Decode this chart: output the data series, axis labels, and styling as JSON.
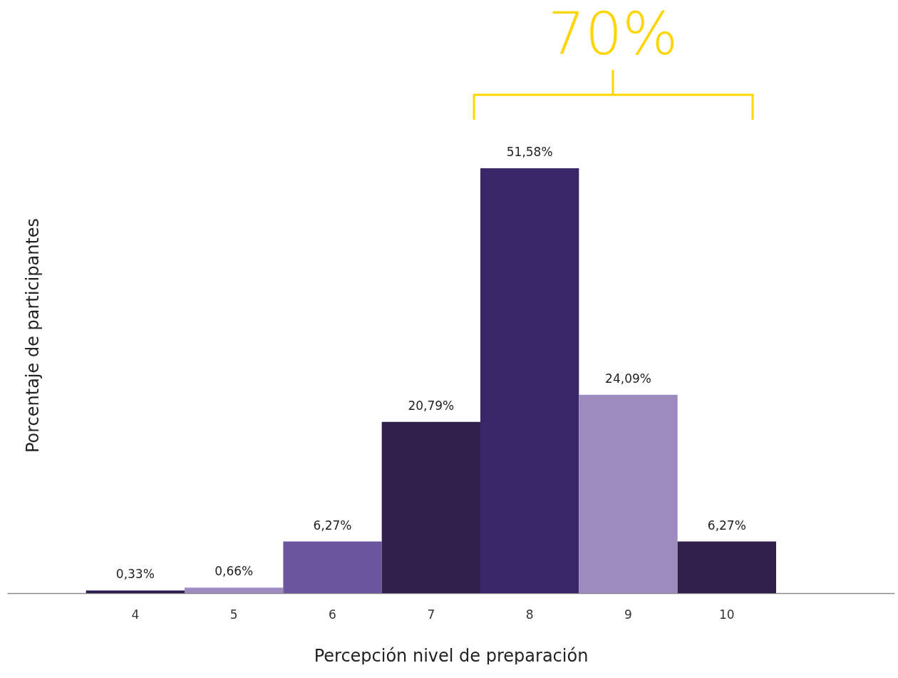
{
  "chart_data": {
    "type": "bar",
    "xlabel": "Percepción nivel de preparación",
    "ylabel": "Porcentaje de participantes",
    "categories": [
      "4",
      "5",
      "6",
      "7",
      "8",
      "9",
      "10"
    ],
    "values": [
      0.33,
      0.66,
      6.27,
      20.79,
      51.58,
      24.09,
      6.27
    ],
    "value_labels": [
      "0,33%",
      "0,66%",
      "6,27%",
      "20,79%",
      "51,58%",
      "24,09%",
      "6,27%"
    ],
    "colors": [
      "#2e1f4f",
      "#9d8bc0",
      "#6c56a0",
      "#31204c",
      "#3a2769",
      "#9d8bc0",
      "#31204c"
    ],
    "relative": false,
    "annotations": [
      "70%"
    ]
  }
}
